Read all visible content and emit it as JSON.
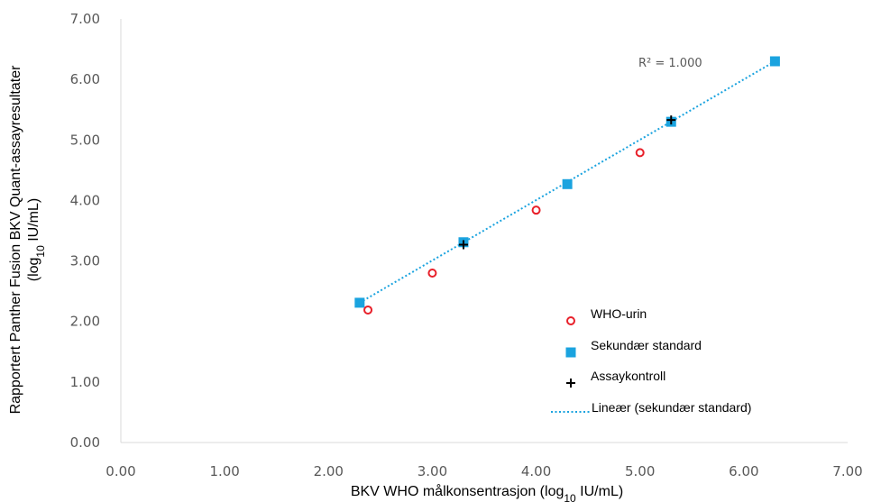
{
  "chart_data": {
    "type": "scatter",
    "xlabel": "BKV WHO målkonsentrasjon (log10 IU/mL)",
    "ylabel_line1": "Rapportert Panther Fusion BKV Quant-assayresultater",
    "ylabel_line2": "(log10 IU/mL)",
    "xlim": [
      0,
      7
    ],
    "ylim": [
      0,
      7
    ],
    "x_ticks": [
      "0.00",
      "1.00",
      "2.00",
      "3.00",
      "4.00",
      "5.00",
      "6.00",
      "7.00"
    ],
    "y_ticks": [
      "0.00",
      "1.00",
      "2.00",
      "3.00",
      "4.00",
      "5.00",
      "6.00",
      "7.00"
    ],
    "grid": false,
    "legend_position": "right",
    "annotation": "R² = 1.000",
    "series": [
      {
        "name": "WHO-urin",
        "marker": "open-circle",
        "color": "#e8202a",
        "points": [
          [
            2.38,
            2.19
          ],
          [
            3.0,
            2.8
          ],
          [
            4.0,
            3.84
          ],
          [
            5.0,
            4.79
          ]
        ]
      },
      {
        "name": "Sekundær standard",
        "marker": "square",
        "color": "#1aa3df",
        "points": [
          [
            2.3,
            2.31
          ],
          [
            3.3,
            3.31
          ],
          [
            4.3,
            4.27
          ],
          [
            5.3,
            5.3
          ],
          [
            6.3,
            6.3
          ]
        ]
      },
      {
        "name": "Assaykontroll",
        "marker": "plus",
        "color": "#000000",
        "points": [
          [
            3.3,
            3.27
          ],
          [
            5.3,
            5.33
          ]
        ]
      }
    ],
    "trendline": {
      "name": "Lineær (sekundær standard)",
      "color": "#1aa3df",
      "style": "dotted",
      "from": [
        2.3,
        2.31
      ],
      "to": [
        6.3,
        6.3
      ]
    }
  }
}
